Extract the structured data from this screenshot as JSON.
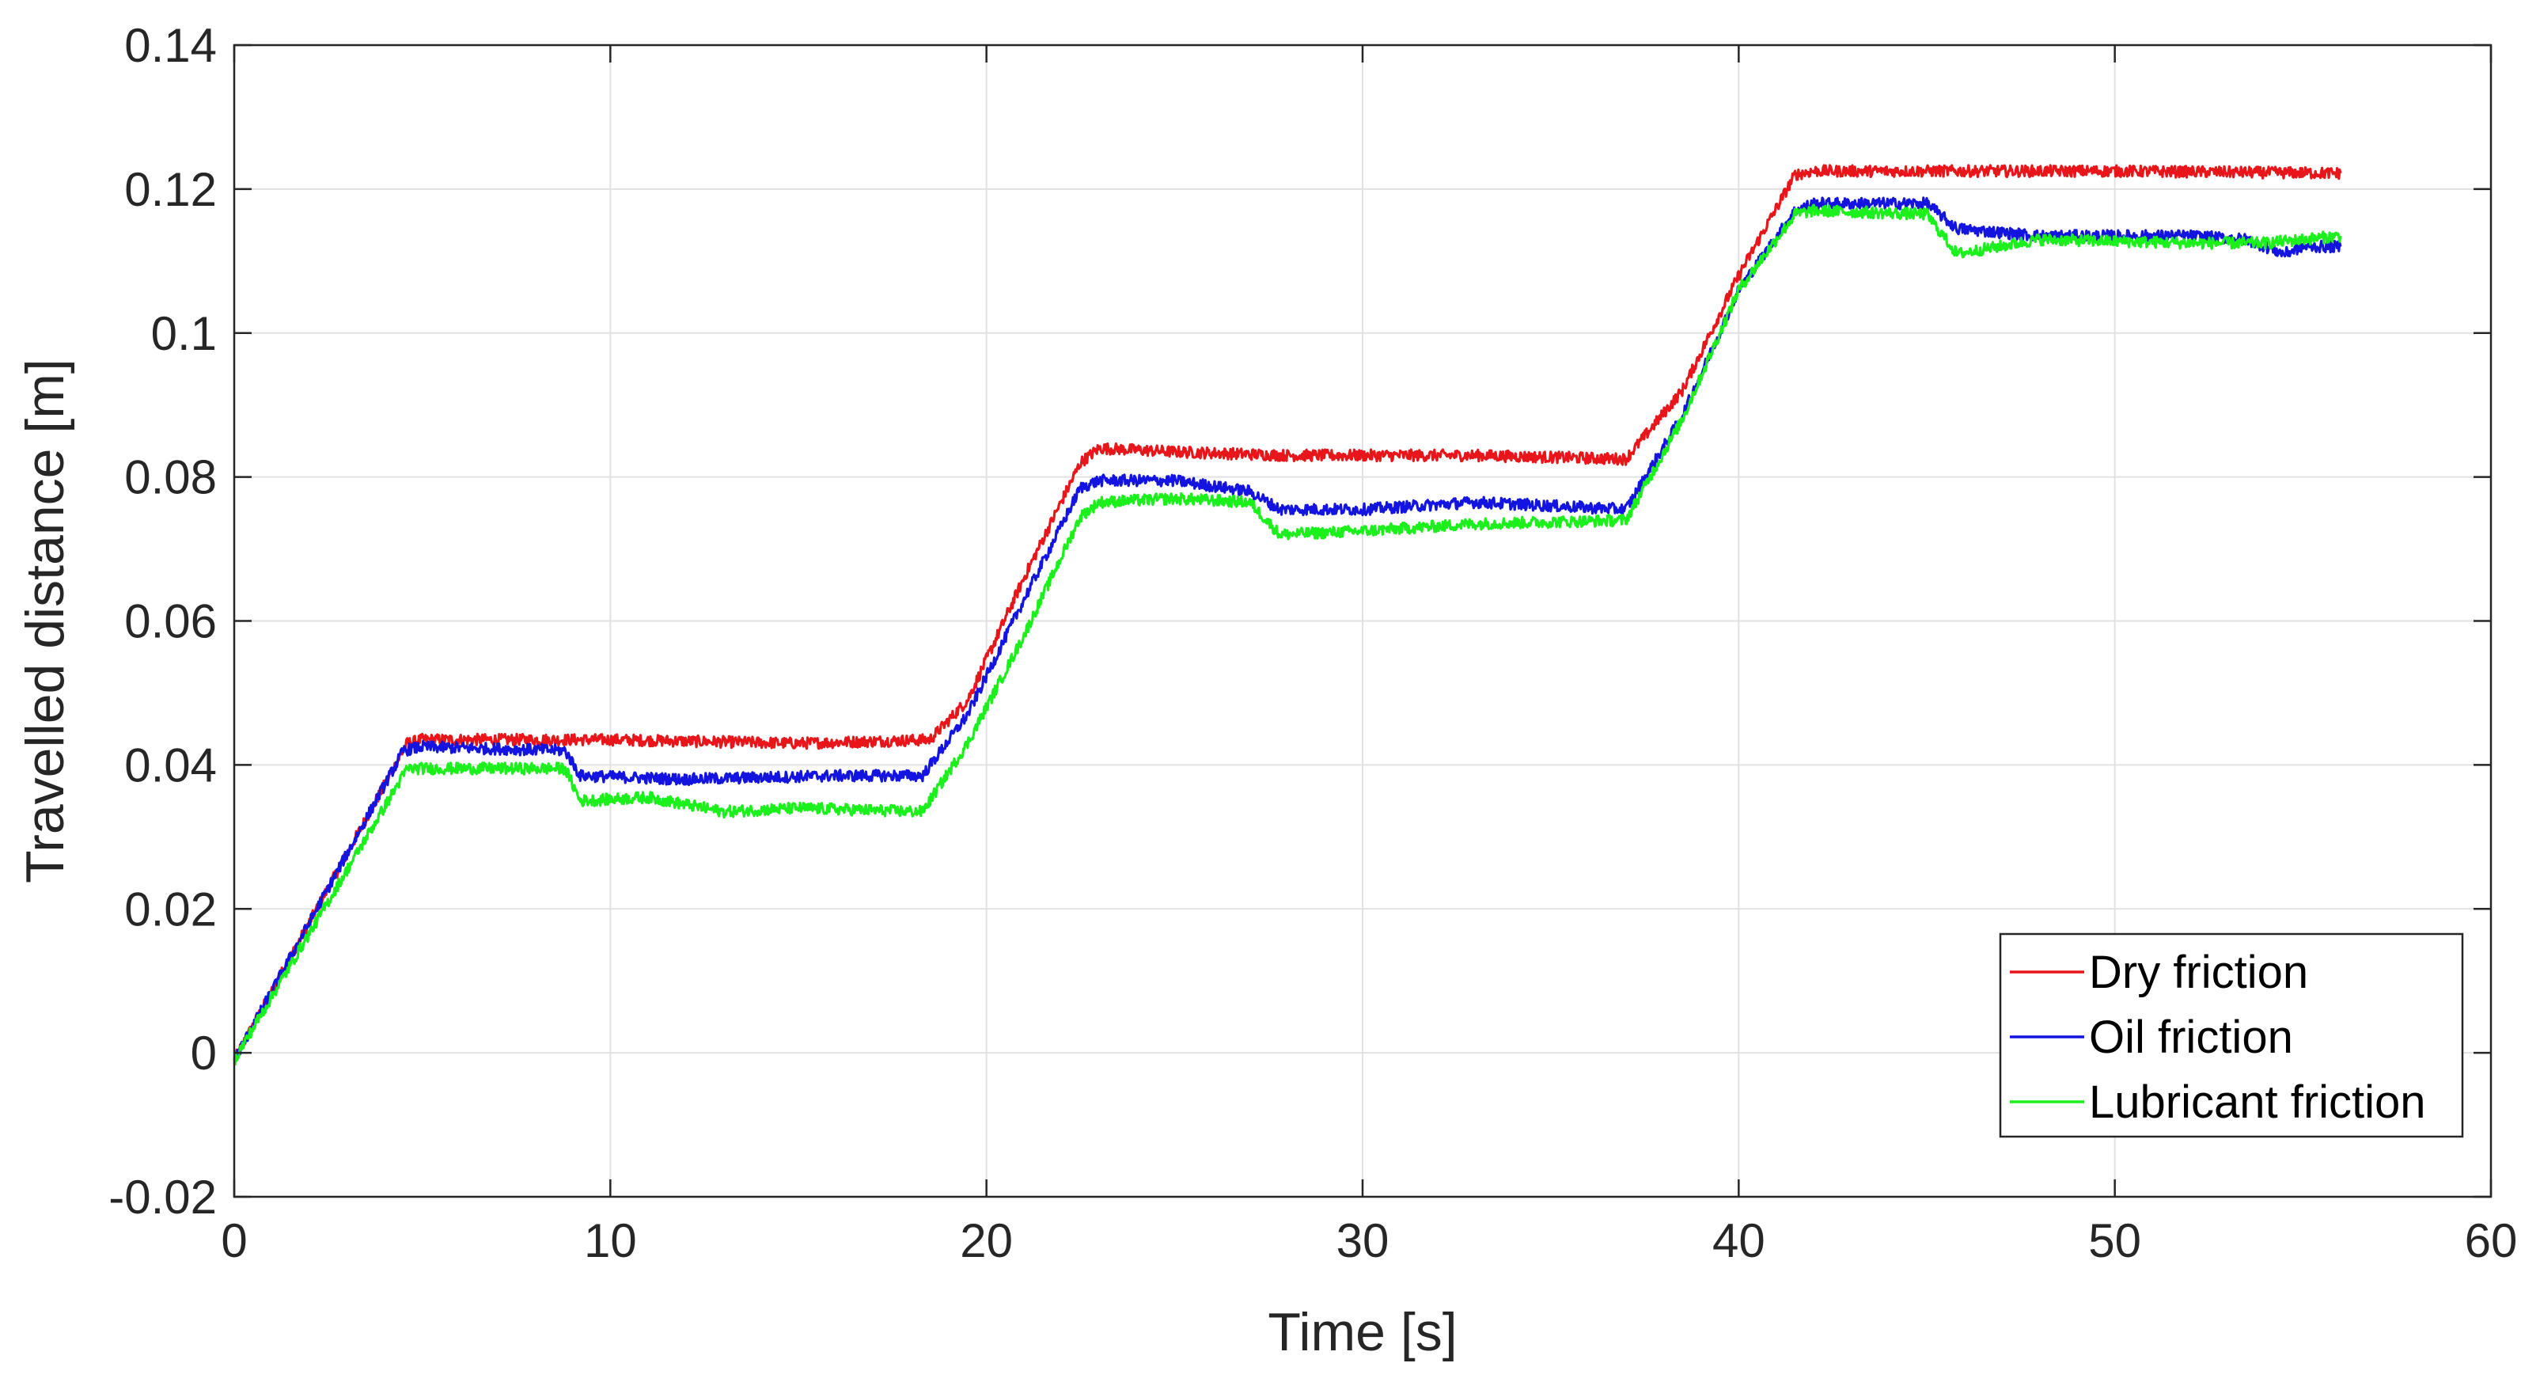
{
  "chart_data": {
    "type": "line",
    "title": "",
    "xlabel": "Time [s]",
    "ylabel": "Travelled distance [m]",
    "xlim": [
      0,
      60
    ],
    "ylim": [
      -0.02,
      0.14
    ],
    "xticks": [
      0,
      10,
      20,
      30,
      40,
      50,
      60
    ],
    "xtick_labels": [
      "0",
      "10",
      "20",
      "30",
      "40",
      "50",
      "60"
    ],
    "yticks": [
      -0.02,
      0,
      0.02,
      0.04,
      0.06,
      0.08,
      0.1,
      0.12,
      0.14
    ],
    "ytick_labels": [
      "-0.02",
      "0",
      "0.02",
      "0.04",
      "0.06",
      "0.08",
      "0.1",
      "0.12",
      "0.14"
    ],
    "grid": true,
    "legend_position": "bottom-right",
    "series": [
      {
        "name": "Dry friction",
        "color": "#e8161b",
        "x": [
          0,
          4.6,
          5.0,
          10,
          15,
          18.5,
          19.5,
          21,
          22.5,
          23,
          25,
          28,
          33,
          37,
          38.5,
          40,
          41.5,
          42,
          45,
          50,
          56
        ],
        "y": [
          -0.001,
          0.043,
          0.0435,
          0.0435,
          0.043,
          0.0435,
          0.049,
          0.066,
          0.082,
          0.084,
          0.0835,
          0.083,
          0.083,
          0.0825,
          0.092,
          0.108,
          0.122,
          0.1225,
          0.1225,
          0.1225,
          0.1222
        ]
      },
      {
        "name": "Oil friction",
        "color": "#1414e0",
        "x": [
          0,
          4.5,
          5.0,
          8.8,
          9.2,
          12,
          16,
          18.3,
          19.5,
          21,
          22.5,
          23,
          25,
          27,
          27.8,
          30,
          33,
          37,
          38.5,
          40,
          41.5,
          42,
          45,
          45.8,
          48,
          52,
          53.5,
          54.5,
          55,
          56
        ],
        "y": [
          -0.001,
          0.042,
          0.0425,
          0.042,
          0.0385,
          0.038,
          0.0385,
          0.0385,
          0.047,
          0.063,
          0.0785,
          0.0795,
          0.0795,
          0.078,
          0.0755,
          0.0755,
          0.0765,
          0.0755,
          0.0885,
          0.106,
          0.117,
          0.118,
          0.118,
          0.1145,
          0.1135,
          0.1135,
          0.113,
          0.111,
          0.112,
          0.112
        ]
      },
      {
        "name": "Lubricant friction",
        "color": "#1cf01c",
        "x": [
          0,
          4.6,
          5.0,
          8.8,
          9.2,
          11,
          13,
          15,
          18.3,
          19.5,
          21,
          22.5,
          23,
          25,
          27,
          27.8,
          30,
          33,
          37,
          38.5,
          40,
          41.5,
          42,
          45,
          45.8,
          48,
          52,
          54,
          56
        ],
        "y": [
          -0.001,
          0.0395,
          0.0395,
          0.0395,
          0.035,
          0.0355,
          0.0335,
          0.034,
          0.0335,
          0.043,
          0.058,
          0.0745,
          0.0765,
          0.077,
          0.0765,
          0.072,
          0.0725,
          0.0735,
          0.074,
          0.088,
          0.106,
          0.1165,
          0.117,
          0.1165,
          0.111,
          0.113,
          0.1125,
          0.1125,
          0.1135
        ]
      }
    ]
  }
}
